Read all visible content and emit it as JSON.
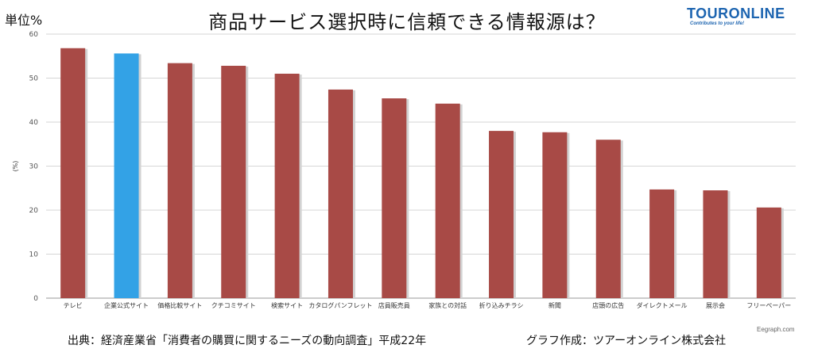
{
  "unit_label": "単位%",
  "title": "商品サービス選択時に信頼できる情報源は？",
  "logo": {
    "name": "TOURONLINE",
    "tagline": "Contributes to your life!"
  },
  "footer": {
    "source": "出典：経済産業省「消費者の購買に関するニーズの動向調査」平成22年",
    "maker": "グラフ作成：ツアーオンライン株式会社",
    "credit": "Eegraph.com"
  },
  "colors": {
    "bar": "#a84a46",
    "highlight": "#33a2e6",
    "grid": "#d6d6d6",
    "axis": "#9a9a9a"
  },
  "chart_data": {
    "type": "bar",
    "title": "商品サービス選択時に信頼できる情報源は？",
    "xlabel": "",
    "ylabel": "(%)",
    "ylim": [
      0,
      60
    ],
    "yticks": [
      0,
      10,
      20,
      30,
      40,
      50,
      60
    ],
    "grid": true,
    "highlight_index": 1,
    "categories": [
      "テレビ",
      "企業公式サイト",
      "価格比較サイト",
      "クチコミサイト",
      "検索サイト",
      "カタログパンフレット",
      "店員販売員",
      "家族との対話",
      "折り込みチラシ",
      "新聞",
      "店頭の広告",
      "ダイレクトメール",
      "展示会",
      "フリーペーパー"
    ],
    "values": [
      56.8,
      55.6,
      53.4,
      52.8,
      51.0,
      47.4,
      45.4,
      44.2,
      38.0,
      37.7,
      36.0,
      24.7,
      24.5,
      20.6
    ]
  }
}
